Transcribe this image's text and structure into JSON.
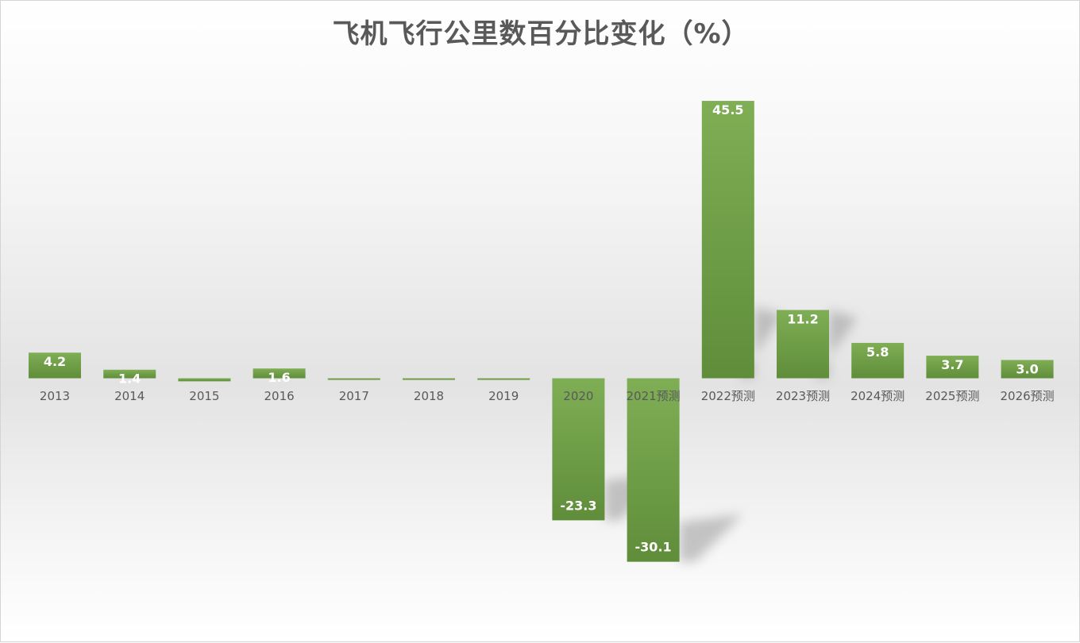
{
  "title": "飞机飞行公里数百分比变化（%）",
  "colors": {
    "bar_light": "#7fae55",
    "bar_dark": "#5f8d3a",
    "shadow": "#9a9a9a"
  },
  "chart_data": {
    "type": "bar",
    "title": "飞机飞行公里数百分比变化（%）",
    "categories": [
      "2013",
      "2014",
      "2015",
      "2016",
      "2017",
      "2018",
      "2019",
      "2020",
      "2021预测",
      "2022预测",
      "2023预测",
      "2024预测",
      "2025预测",
      "2026预测"
    ],
    "values": [
      4.2,
      1.4,
      -0.5,
      1.6,
      -0.1,
      -0.1,
      -0.1,
      -23.3,
      -30.1,
      45.5,
      11.2,
      5.8,
      3.7,
      3.0
    ],
    "data_labels": [
      "4.2",
      "1.4",
      "",
      "1.6",
      "",
      "",
      "",
      "-23.3",
      "-30.1",
      "45.5",
      "11.2",
      "5.8",
      "3.7",
      "3.0"
    ],
    "xlabel": "",
    "ylabel": "",
    "grid": false,
    "legend": "none"
  }
}
